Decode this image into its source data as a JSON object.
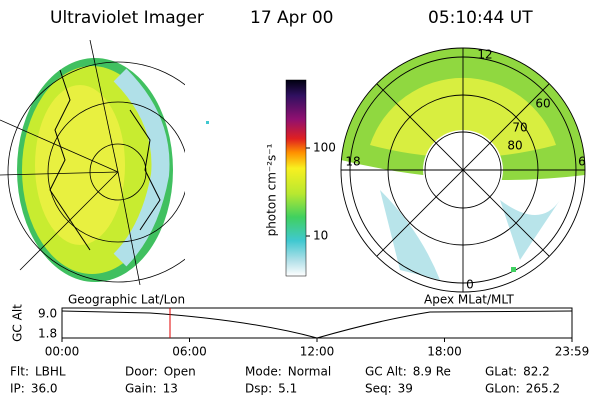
{
  "header": {
    "title": "Ultraviolet Imager",
    "date": "17 Apr 00",
    "time": "05:10:44 UT"
  },
  "colorbar": {
    "label": "photon cm⁻²s⁻¹",
    "ticks": [
      "100",
      "10"
    ]
  },
  "left_panel": {
    "caption": "Geographic Lat/Lon"
  },
  "right_panel": {
    "caption": "Apex MLat/MLT",
    "mlt_labels": [
      "12",
      "18",
      "6",
      "0"
    ],
    "lat_labels": [
      "80",
      "70",
      "60"
    ]
  },
  "timeline": {
    "axis_label": "GC Alt",
    "y_labels": [
      "9.0",
      "1.8"
    ],
    "x_labels": [
      "00:00",
      "06:00",
      "12:00",
      "18:00",
      "23:59"
    ]
  },
  "footer": {
    "fields": [
      {
        "label": "Flt:",
        "value": "LBHL"
      },
      {
        "label": "Door:",
        "value": "Open"
      },
      {
        "label": "Mode:",
        "value": "Normal"
      },
      {
        "label": "GC Alt:",
        "value": "8.9 Re"
      },
      {
        "label": "GLat:",
        "value": "82.2"
      },
      {
        "label": "IP:",
        "value": "36.0"
      },
      {
        "label": "Gain:",
        "value": "13"
      },
      {
        "label": "Dsp:",
        "value": "5.1"
      },
      {
        "label": "Seq:",
        "value": "39"
      },
      {
        "label": "GLon:",
        "value": "265.2"
      }
    ]
  }
}
